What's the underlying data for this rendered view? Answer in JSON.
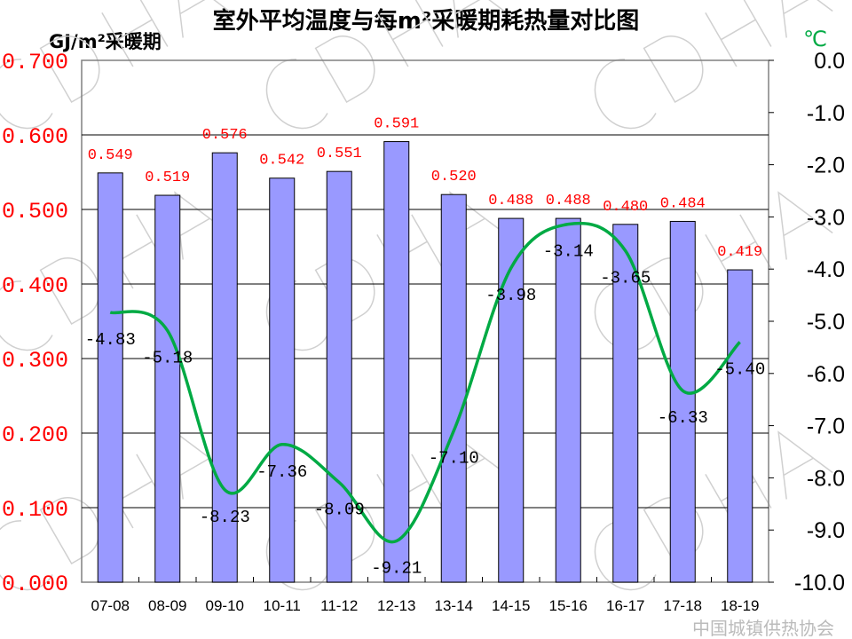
{
  "chart_data": {
    "type": "bar+line",
    "title": "室外平均温度与每m²采暖期耗热量对比图",
    "ylabel_left": "GJ/m²采暖期",
    "ylabel_right": "℃",
    "categories": [
      "07-08",
      "08-09",
      "09-10",
      "10-11",
      "11-12",
      "12-13",
      "13-14",
      "14-15",
      "15-16",
      "16-17",
      "17-18",
      "18-19"
    ],
    "series": [
      {
        "name": "每m²采暖期耗热量",
        "type": "bar",
        "axis": "left",
        "color": "#9999ff",
        "values": [
          0.549,
          0.519,
          0.576,
          0.542,
          0.551,
          0.591,
          0.52,
          0.488,
          0.488,
          0.48,
          0.484,
          0.419
        ],
        "labels": [
          "0.549",
          "0.519",
          "0.576",
          "0.542",
          "0.551",
          "0.591",
          "0.520",
          "0.488",
          "0.488",
          "0.480",
          "0.484",
          "0.419"
        ]
      },
      {
        "name": "室外平均温度",
        "type": "line",
        "axis": "right",
        "color": "#00aa44",
        "values": [
          -4.83,
          -5.18,
          -8.23,
          -7.36,
          -8.09,
          -9.21,
          -7.1,
          -3.98,
          -3.14,
          -3.65,
          -6.33,
          -5.4
        ],
        "labels": [
          "-4.83",
          "-5.18",
          "-8.23",
          "-7.36",
          "-8.09",
          "-9.21",
          "-7.10",
          "-3.98",
          "-3.14",
          "-3.65",
          "-6.33",
          "-5.40"
        ]
      }
    ],
    "ylim_left": [
      0,
      0.7
    ],
    "ylim_right": [
      -10,
      0
    ],
    "left_ticks": [
      "0.000",
      "0.100",
      "0.200",
      "0.300",
      "0.400",
      "0.500",
      "0.600",
      "0.700"
    ],
    "right_ticks": [
      "-10.0",
      "-9.0",
      "-8.0",
      "-7.0",
      "-6.0",
      "-5.0",
      "-4.0",
      "-3.0",
      "-2.0",
      "-1.0",
      "0.0"
    ],
    "grid": true,
    "colors": {
      "left_ticks": "#ff0000",
      "right_unit": "#00aa44",
      "bar_labels": "#ff0000"
    }
  },
  "watermark": {
    "text": "CDHA",
    "logo_text": "中国城镇供热协会"
  }
}
